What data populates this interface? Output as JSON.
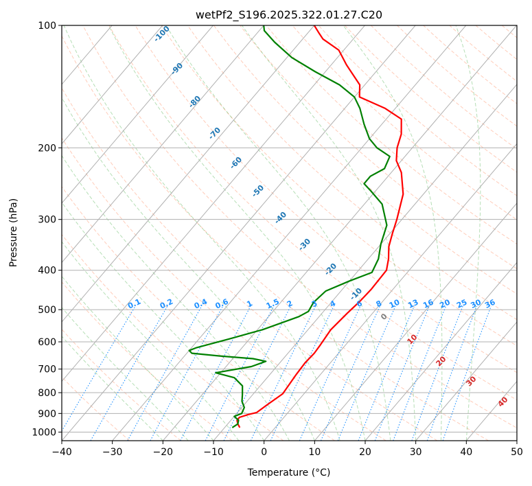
{
  "chart_data": {
    "type": "line",
    "title": "wetPf2_S196.2025.322.01.27.C20",
    "xlabel": "Temperature (°C)",
    "ylabel": "Pressure (hPa)",
    "xlim": [
      -40,
      50
    ],
    "ylim": [
      1050,
      100
    ],
    "y_scale": "log",
    "grid": true,
    "x_ticks": [
      "−40",
      "−30",
      "−20",
      "−10",
      "0",
      "10",
      "20",
      "30",
      "40",
      "50"
    ],
    "x_tick_values": [
      -40,
      -30,
      -20,
      -10,
      0,
      10,
      20,
      30,
      40,
      50
    ],
    "y_ticks": [
      "100",
      "200",
      "300",
      "400",
      "500",
      "600",
      "700",
      "800",
      "900",
      "1000"
    ],
    "y_tick_values": [
      100,
      200,
      300,
      400,
      500,
      600,
      700,
      800,
      900,
      1000
    ],
    "series": [
      {
        "role": "temperature",
        "color": "#ff0000",
        "points": [
          [
            -7.0,
            975
          ],
          [
            -8.0,
            955
          ],
          [
            -8.8,
            935
          ],
          [
            -8.8,
            920
          ],
          [
            -7.5,
            905
          ],
          [
            -6.2,
            895
          ],
          [
            -5.5,
            860
          ],
          [
            -4.2,
            805
          ],
          [
            -4.5,
            760
          ],
          [
            -4.8,
            720
          ],
          [
            -5.0,
            675
          ],
          [
            -4.8,
            640
          ],
          [
            -5.0,
            610
          ],
          [
            -5.5,
            560
          ],
          [
            -5.0,
            510
          ],
          [
            -4.5,
            475
          ],
          [
            -4.3,
            445
          ],
          [
            -4.5,
            400
          ],
          [
            -6.0,
            375
          ],
          [
            -8.0,
            350
          ],
          [
            -9.5,
            325
          ],
          [
            -11.0,
            300
          ],
          [
            -14.0,
            260
          ],
          [
            -18.0,
            230
          ],
          [
            -21.0,
            215
          ],
          [
            -23.0,
            200
          ],
          [
            -24.5,
            185
          ],
          [
            -27.0,
            170
          ],
          [
            -32.0,
            160
          ],
          [
            -39.0,
            150
          ],
          [
            -41.0,
            140
          ],
          [
            -47.0,
            125
          ],
          [
            -51.0,
            115
          ],
          [
            -56.0,
            108
          ],
          [
            -58.0,
            104
          ],
          [
            -60.0,
            100
          ]
        ]
      },
      {
        "role": "dewpoint",
        "color": "#008000",
        "points": [
          [
            -8.5,
            975
          ],
          [
            -8.0,
            955
          ],
          [
            -8.5,
            935
          ],
          [
            -10.0,
            915
          ],
          [
            -9.0,
            900
          ],
          [
            -9.5,
            870
          ],
          [
            -11.0,
            840
          ],
          [
            -12.0,
            810
          ],
          [
            -13.5,
            770
          ],
          [
            -16.5,
            735
          ],
          [
            -21.0,
            715
          ],
          [
            -15.0,
            690
          ],
          [
            -13.0,
            670
          ],
          [
            -16.0,
            660
          ],
          [
            -23.0,
            650
          ],
          [
            -29.0,
            640
          ],
          [
            -30.0,
            630
          ],
          [
            -29.0,
            620
          ],
          [
            -24.0,
            590
          ],
          [
            -19.0,
            560
          ],
          [
            -14.0,
            520
          ],
          [
            -13.0,
            505
          ],
          [
            -13.5,
            480
          ],
          [
            -13.0,
            450
          ],
          [
            -10.0,
            425
          ],
          [
            -7.0,
            405
          ],
          [
            -8.0,
            375
          ],
          [
            -10.0,
            345
          ],
          [
            -12.0,
            310
          ],
          [
            -16.5,
            275
          ],
          [
            -21.0,
            255
          ],
          [
            -23.5,
            245
          ],
          [
            -23.5,
            235
          ],
          [
            -22.0,
            225
          ],
          [
            -23.0,
            210
          ],
          [
            -27.0,
            200
          ],
          [
            -30.0,
            190
          ],
          [
            -33.5,
            175
          ],
          [
            -37.0,
            160
          ],
          [
            -40.0,
            150
          ],
          [
            -45.0,
            140
          ],
          [
            -52.0,
            130
          ],
          [
            -59.0,
            120
          ],
          [
            -65.0,
            110
          ],
          [
            -69.0,
            103
          ],
          [
            -70.0,
            100
          ]
        ]
      }
    ],
    "isotherm_labels": [
      "-100",
      "-90",
      "-80",
      "-70",
      "-60",
      "-50",
      "-40",
      "-30",
      "-20",
      "-10",
      "0",
      "10",
      "20",
      "30",
      "40"
    ],
    "mixing_ratio_labels": [
      "0.1",
      "0.2",
      "0.4",
      "0.6",
      "1",
      "1.5",
      "2",
      "3",
      "4",
      "6",
      "8",
      "10",
      "13",
      "16",
      "20",
      "25",
      "30",
      "36"
    ],
    "mixing_ratio_values": [
      0.1,
      0.2,
      0.4,
      0.6,
      1,
      1.5,
      2,
      3,
      4,
      6,
      8,
      10,
      13,
      16,
      20,
      25,
      30,
      36
    ],
    "colors": {
      "temperature": "#ff0000",
      "dewpoint": "#008000",
      "isotherm_label_cold": "#1f77b4",
      "isotherm_label_zero": "#808080",
      "isotherm_label_warm": "#d62728",
      "mixing_ratio": "#1e90ff",
      "dry_adiabat": "#ff7f50",
      "moist_adiabat": "#2ca02c",
      "grid": "#b0b0b0"
    }
  }
}
